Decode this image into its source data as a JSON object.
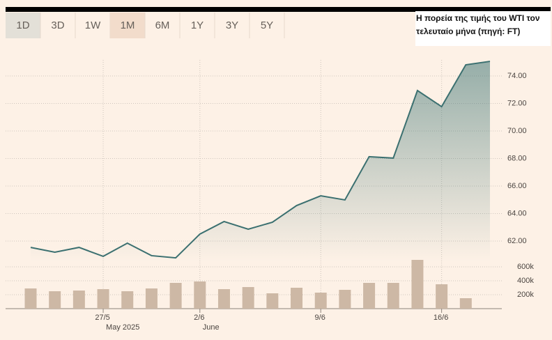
{
  "chart_data": {
    "type": "line",
    "title_lines": [
      "Η πορεία της τιμής του WTI τον",
      "τελευταίο μήνα (πηγή: FT)"
    ],
    "buttons": [
      "1D",
      "3D",
      "1W",
      "1M",
      "6M",
      "1Y",
      "3Y",
      "5Y"
    ],
    "active_button": "1M",
    "hovered_button": "1D",
    "categories": [
      null,
      null,
      null,
      "27/5",
      null,
      null,
      null,
      "2/6",
      null,
      null,
      null,
      null,
      "9/6",
      null,
      null,
      null,
      null,
      "16/6",
      null,
      null
    ],
    "category_periods": [
      null,
      null,
      null,
      "May 2025",
      null,
      null,
      null,
      "June",
      null,
      null,
      null,
      null,
      null,
      null,
      null,
      null,
      null,
      null,
      null,
      null
    ],
    "series": [
      {
        "color": "#3b7070",
        "values": [
          61.54,
          61.19,
          61.54,
          60.89,
          61.85,
          60.94,
          60.78,
          62.51,
          63.42,
          62.86,
          63.37,
          64.58,
          65.29,
          64.99,
          68.13,
          68.03,
          72.94,
          71.77,
          74.81,
          75.06
        ]
      },
      {
        "type": "bar",
        "axis": "y2",
        "color": "#cdb8a5",
        "values": [
          290000,
          250000,
          260000,
          280000,
          250000,
          290000,
          370000,
          390000,
          280000,
          310000,
          220000,
          300000,
          230000,
          270000,
          370000,
          370000,
          700000,
          350000,
          150000,
          null
        ]
      }
    ],
    "ylim": [
      60,
      76
    ],
    "yticks": [
      {
        "value": 62,
        "label": "62.00"
      },
      {
        "value": 64,
        "label": "64.00"
      },
      {
        "value": 66,
        "label": "66.00"
      },
      {
        "value": 68,
        "label": "68.00"
      },
      {
        "value": 70,
        "label": "70.00"
      },
      {
        "value": 72,
        "label": "72.00"
      },
      {
        "value": 74,
        "label": "74.00"
      }
    ],
    "y2lim": [
      0,
      800000
    ],
    "y2ticks": [
      {
        "value": 200000,
        "label": "200k"
      },
      {
        "value": 400000,
        "label": "400k"
      },
      {
        "value": 600000,
        "label": "600k"
      }
    ],
    "grid": true
  }
}
